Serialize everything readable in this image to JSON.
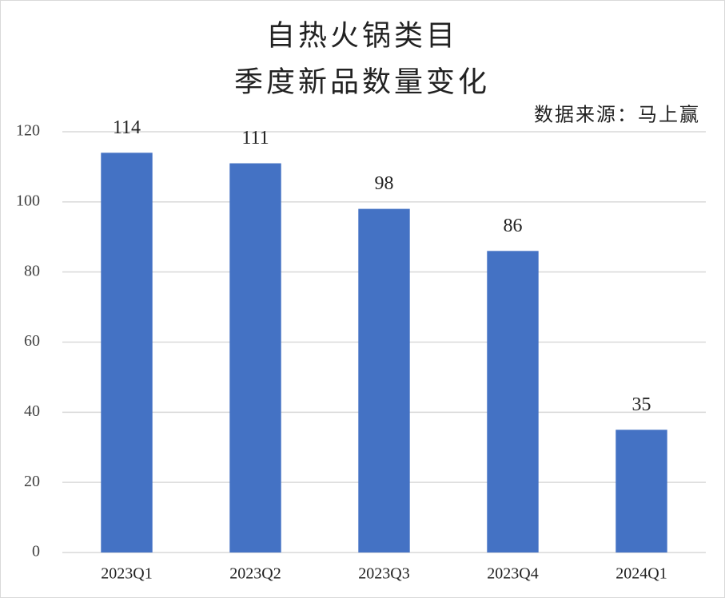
{
  "chart_data": {
    "type": "bar",
    "title": [
      "自热火锅类目",
      "季度新品数量变化"
    ],
    "source": "数据来源：马上赢",
    "categories": [
      "2023Q1",
      "2023Q2",
      "2023Q3",
      "2023Q4",
      "2024Q1"
    ],
    "values": [
      114,
      111,
      98,
      86,
      35
    ],
    "color": "#4472c4",
    "ylim": [
      0,
      120
    ],
    "yticks": [
      0,
      20,
      40,
      60,
      80,
      100,
      120
    ],
    "grid": true
  }
}
